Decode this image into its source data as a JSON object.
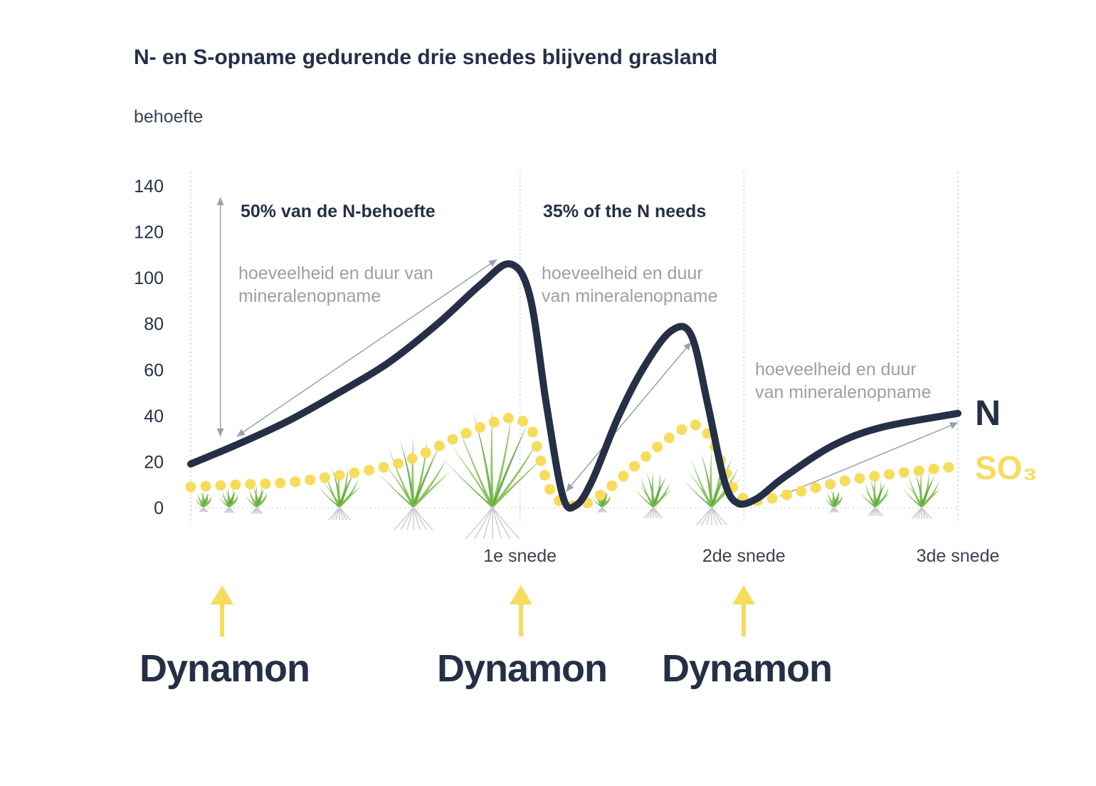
{
  "colors": {
    "n_series": "#253047",
    "so3_series": "#f7dc5c",
    "text_dark": "#253047",
    "note_grey": "#9aa0a8",
    "arrow_yellow": "#f7dc5c",
    "grass": "#7dbb4a",
    "roots": "#c9ccd0"
  },
  "chart_data": {
    "type": "line",
    "title": "N- en S-opname gedurende drie snedes blijvend grasland",
    "ylabel": "behoefte",
    "ylim": [
      0,
      140
    ],
    "y_ticks": [
      "140",
      "120",
      "100",
      "80",
      "60",
      "40",
      "20",
      "0"
    ],
    "y_tick_values": [
      140,
      120,
      100,
      80,
      60,
      40,
      20,
      0
    ],
    "x_markers": [
      {
        "label": "1e snede",
        "x": 100
      },
      {
        "label": "2de snede",
        "x": 168
      },
      {
        "label": "3de snede",
        "x": 233
      }
    ],
    "xlim": [
      0,
      233
    ],
    "grid": false,
    "series": [
      {
        "name": "N",
        "style": "solid",
        "points": [
          [
            0,
            19
          ],
          [
            15,
            28
          ],
          [
            30,
            38
          ],
          [
            45,
            50
          ],
          [
            60,
            63
          ],
          [
            75,
            80
          ],
          [
            88,
            97
          ],
          [
            97,
            106
          ],
          [
            103,
            92
          ],
          [
            108,
            45
          ],
          [
            113,
            5
          ],
          [
            117,
            1
          ],
          [
            122,
            12
          ],
          [
            130,
            40
          ],
          [
            138,
            62
          ],
          [
            146,
            77
          ],
          [
            152,
            75
          ],
          [
            157,
            45
          ],
          [
            162,
            12
          ],
          [
            166,
            2
          ],
          [
            172,
            4
          ],
          [
            180,
            13
          ],
          [
            195,
            27
          ],
          [
            210,
            35
          ],
          [
            233,
            41
          ]
        ]
      },
      {
        "name": "SO₃",
        "style": "dotted",
        "points": [
          [
            0,
            9
          ],
          [
            15,
            10
          ],
          [
            30,
            11
          ],
          [
            45,
            14
          ],
          [
            60,
            18
          ],
          [
            70,
            23
          ],
          [
            80,
            30
          ],
          [
            90,
            36
          ],
          [
            97,
            39
          ],
          [
            103,
            35
          ],
          [
            106,
            22
          ],
          [
            109,
            8
          ],
          [
            113,
            2
          ],
          [
            118,
            1
          ],
          [
            123,
            4
          ],
          [
            130,
            12
          ],
          [
            138,
            22
          ],
          [
            146,
            31
          ],
          [
            153,
            36
          ],
          [
            158,
            30
          ],
          [
            162,
            17
          ],
          [
            166,
            6
          ],
          [
            172,
            3
          ],
          [
            185,
            7
          ],
          [
            200,
            12
          ],
          [
            215,
            15
          ],
          [
            233,
            18
          ]
        ]
      }
    ],
    "annotations": [
      {
        "type": "heading",
        "text": "50% van de N-behoefte"
      },
      {
        "type": "heading",
        "text": "35% of the N needs"
      },
      {
        "type": "note",
        "lines": [
          "hoeveelheid en duur van",
          "mineralenopname"
        ]
      },
      {
        "type": "note",
        "lines": [
          "hoeveelheid en duur",
          "van mineralenopname"
        ]
      },
      {
        "type": "note",
        "lines": [
          "hoeveelheid en duur",
          "van mineralenopname"
        ]
      }
    ],
    "arrows": [
      {
        "from": [
          9,
          135
        ],
        "to": [
          9,
          31
        ]
      },
      {
        "from": [
          14,
          31
        ],
        "to": [
          93,
          108
        ]
      },
      {
        "from": [
          114,
          7
        ],
        "to": [
          152,
          72
        ]
      },
      {
        "from": [
          179,
          5
        ],
        "to": [
          233,
          37
        ]
      }
    ]
  },
  "applications": [
    {
      "brand": "Dynamon"
    },
    {
      "brand": "Dynamon"
    },
    {
      "brand": "Dynamon"
    }
  ],
  "legend": {
    "n_label": "N",
    "so3_label": "SO₃"
  }
}
